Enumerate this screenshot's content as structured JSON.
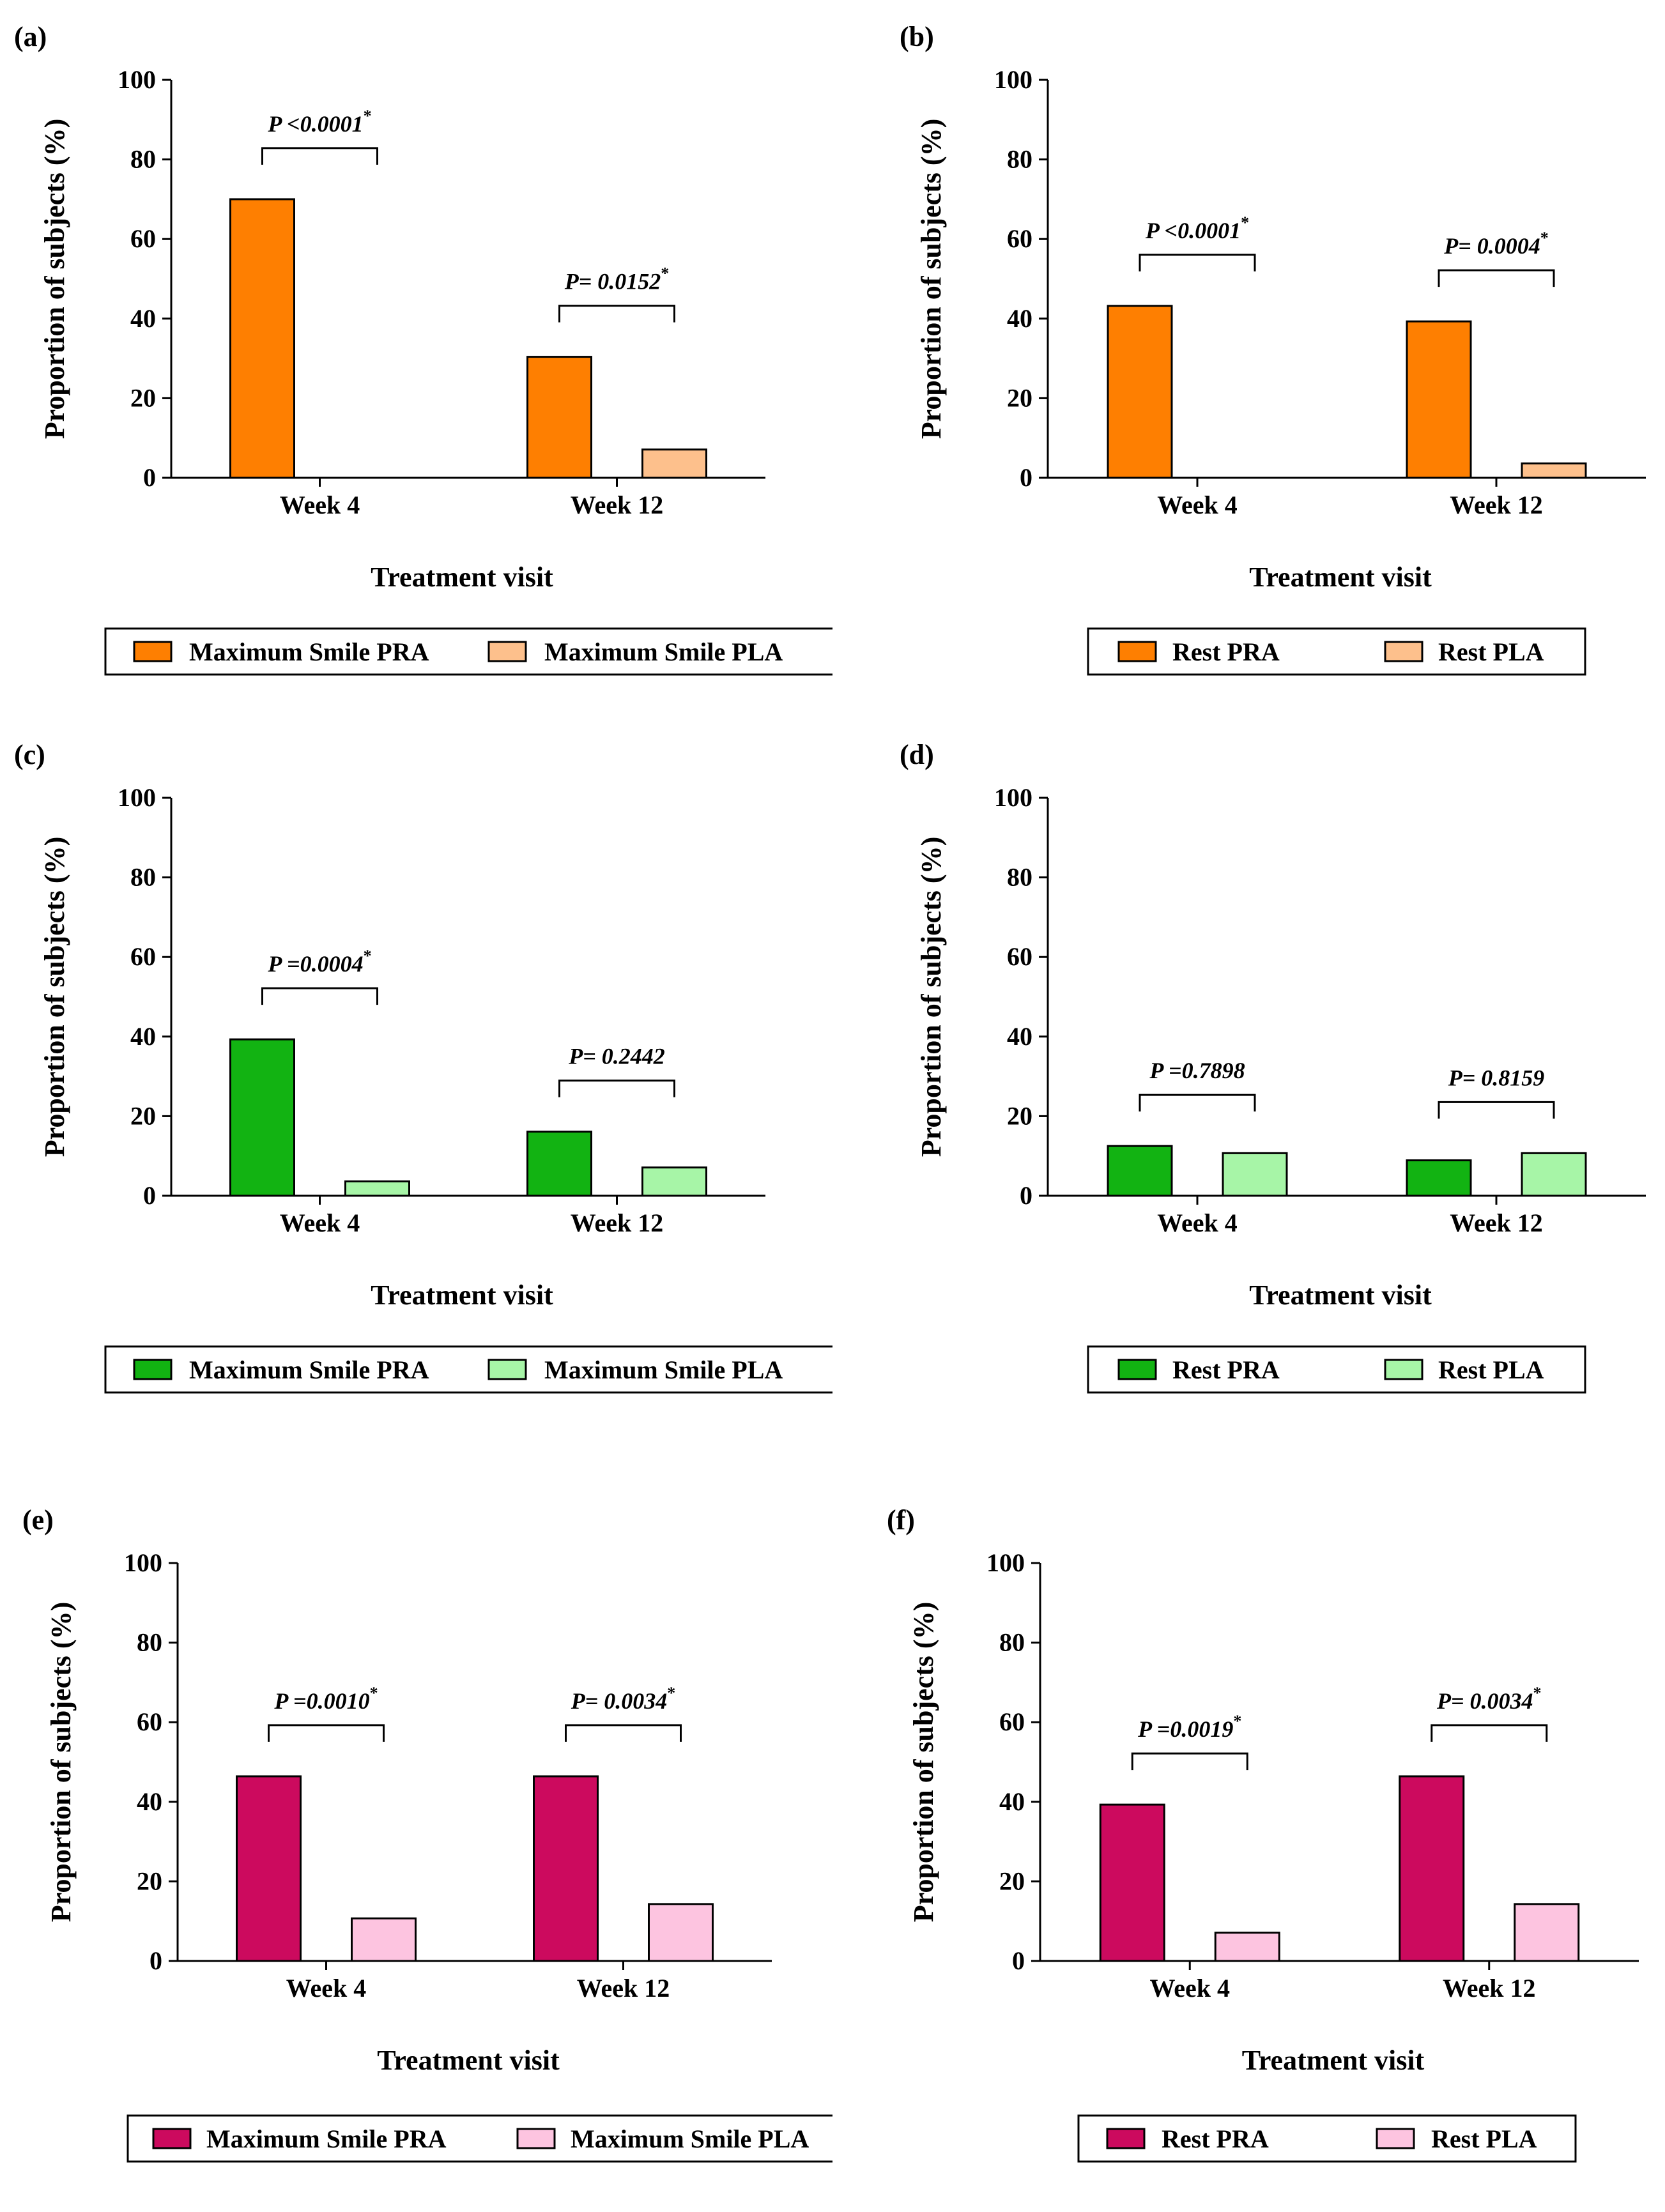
{
  "figure": {
    "x_label": "Treatment visit",
    "y_label": "Proportion of subjects (%)",
    "y_ticks": [
      "0",
      "20",
      "40",
      "60",
      "80",
      "100"
    ]
  },
  "chart_data": [
    {
      "panel": "(a)",
      "type": "bar",
      "categories": [
        "Week 4",
        "Week 12"
      ],
      "series": [
        {
          "name": "Maximum Smile PRA",
          "values": [
            70.0,
            30.4
          ],
          "color": "#fe7f01"
        },
        {
          "name": "Maximum Smile PLA",
          "values": [
            0,
            7.1
          ],
          "color": "#fdc08c"
        }
      ],
      "p_values": [
        "P <0.0001*",
        "P= 0.0152*"
      ],
      "ylim": [
        0,
        100
      ],
      "xlabel": "Treatment visit",
      "ylabel": "Proportion of subjects (%)",
      "legend": "bottom"
    },
    {
      "panel": "(b)",
      "type": "bar",
      "categories": [
        "Week 4",
        "Week 12"
      ],
      "series": [
        {
          "name": "Rest PRA",
          "values": [
            43.2,
            39.3
          ],
          "color": "#fe7f01"
        },
        {
          "name": "Rest PLA",
          "values": [
            0,
            3.6
          ],
          "color": "#fdc08c"
        }
      ],
      "p_values": [
        "P <0.0001*",
        "P= 0.0004*"
      ],
      "ylim": [
        0,
        100
      ],
      "xlabel": "Treatment visit",
      "ylabel": "Proportion of subjects (%)",
      "legend": "bottom"
    },
    {
      "panel": "(c)",
      "type": "bar",
      "categories": [
        "Week 4",
        "Week 12"
      ],
      "series": [
        {
          "name": "Maximum Smile PRA",
          "values": [
            39.3,
            16.1
          ],
          "color": "#12b312"
        },
        {
          "name": "Maximum Smile PLA",
          "values": [
            3.6,
            7.1
          ],
          "color": "#a7f5a7"
        }
      ],
      "p_values": [
        "P =0.0004*",
        "P= 0.2442"
      ],
      "ylim": [
        0,
        100
      ],
      "xlabel": "Treatment visit",
      "ylabel": "Proportion of subjects (%)",
      "legend": "bottom"
    },
    {
      "panel": "(d)",
      "type": "bar",
      "categories": [
        "Week 4",
        "Week 12"
      ],
      "series": [
        {
          "name": "Rest PRA",
          "values": [
            12.5,
            8.9
          ],
          "color": "#12b312"
        },
        {
          "name": "Rest PLA",
          "values": [
            10.7,
            10.7
          ],
          "color": "#a7f5a7"
        }
      ],
      "p_values": [
        "P =0.7898",
        "P= 0.8159"
      ],
      "ylim": [
        0,
        100
      ],
      "xlabel": "Treatment visit",
      "ylabel": "Proportion of subjects (%)",
      "legend": "bottom"
    },
    {
      "panel": "(e)",
      "type": "bar",
      "categories": [
        "Week 4",
        "Week 12"
      ],
      "series": [
        {
          "name": "Maximum Smile PRA",
          "values": [
            46.4,
            46.4
          ],
          "color": "#cc0a5e"
        },
        {
          "name": "Maximum Smile PLA",
          "values": [
            10.7,
            14.3
          ],
          "color": "#fdc4e0"
        }
      ],
      "p_values": [
        "P =0.0010*",
        "P= 0.0034*"
      ],
      "ylim": [
        0,
        100
      ],
      "xlabel": "Treatment visit",
      "ylabel": "Proportion of subjects (%)",
      "legend": "bottom"
    },
    {
      "panel": "(f)",
      "type": "bar",
      "categories": [
        "Week 4",
        "Week 12"
      ],
      "series": [
        {
          "name": "Rest PRA",
          "values": [
            39.3,
            46.4
          ],
          "color": "#cc0a5e"
        },
        {
          "name": "Rest PLA",
          "values": [
            7.1,
            14.3
          ],
          "color": "#fdc4e0"
        }
      ],
      "p_values": [
        "P =0.0019*",
        "P= 0.0034*"
      ],
      "ylim": [
        0,
        100
      ],
      "xlabel": "Treatment visit",
      "ylabel": "Proportion of subjects (%)",
      "legend": "bottom"
    }
  ]
}
